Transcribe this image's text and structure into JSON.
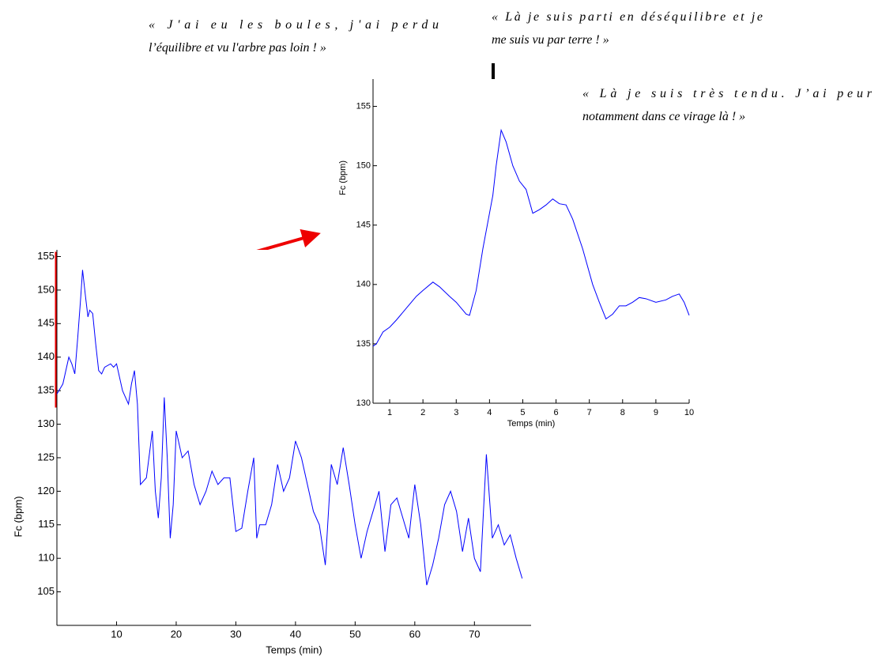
{
  "chart_data": [
    {
      "type": "line",
      "xlabel": "Temps (min)",
      "ylabel": "Fc (bpm)",
      "xlim": [
        0,
        79.5
      ],
      "ylim": [
        100,
        156
      ],
      "xticks": [
        10,
        20,
        30,
        40,
        50,
        60,
        70
      ],
      "yticks": [
        105,
        110,
        115,
        120,
        125,
        130,
        135,
        140,
        145,
        150,
        155
      ],
      "x": [
        0,
        1,
        2,
        2.5,
        3,
        3.5,
        4,
        4.3,
        4.8,
        5.2,
        5.5,
        6,
        6.5,
        7,
        7.5,
        8,
        9,
        9.5,
        10,
        11,
        12,
        12.5,
        13,
        13.5,
        14,
        15,
        16,
        16.5,
        17,
        17.5,
        18,
        18.5,
        19,
        19.5,
        20,
        21,
        22,
        23,
        24,
        25,
        26,
        27,
        28,
        29,
        30,
        31,
        32,
        33,
        33.5,
        34,
        35,
        36,
        37,
        38,
        39,
        40,
        41,
        42,
        43,
        44,
        45,
        46,
        47,
        48,
        49,
        50,
        51,
        52,
        53,
        54,
        55,
        56,
        57,
        58,
        59,
        60,
        61,
        62,
        63,
        64,
        65,
        66,
        67,
        68,
        69,
        70,
        71,
        72,
        73,
        74,
        75,
        76,
        77,
        78
      ],
      "series": [
        {
          "color": "#0000ff",
          "values": [
            134.5,
            136,
            140,
            139,
            137.5,
            143,
            149,
            153,
            149,
            146,
            147,
            146.5,
            142,
            138,
            137.5,
            138.5,
            139,
            138.5,
            139,
            135,
            133,
            136,
            138,
            133,
            121,
            122,
            129,
            120,
            116,
            122,
            134,
            125,
            113,
            118,
            129,
            125,
            126,
            121,
            118,
            120,
            123,
            121,
            122,
            122,
            114,
            114.5,
            120,
            125,
            113,
            115,
            115,
            118,
            124,
            120,
            122,
            127.5,
            125,
            121,
            117,
            115,
            109,
            124,
            121,
            126.5,
            121,
            115,
            110,
            114,
            117,
            120,
            111,
            118,
            119,
            116,
            113,
            121,
            115,
            106,
            109,
            113,
            118,
            120,
            117,
            111,
            116,
            110,
            108,
            125.5,
            113,
            115,
            112,
            113.5,
            110,
            107
          ]
        }
      ]
    },
    {
      "type": "line",
      "xlabel": "Temps (min)",
      "ylabel": "Fc (bpm)",
      "xlim": [
        0.5,
        10
      ],
      "ylim": [
        130,
        157.3
      ],
      "xticks": [
        1,
        2,
        3,
        4,
        5,
        6,
        7,
        8,
        9,
        10
      ],
      "yticks": [
        130,
        135,
        140,
        145,
        150,
        155
      ],
      "x": [
        0.5,
        0.6,
        0.8,
        1,
        1.2,
        1.5,
        1.8,
        2,
        2.3,
        2.5,
        2.8,
        3,
        3.3,
        3.4,
        3.6,
        3.8,
        4,
        4.1,
        4.2,
        4.35,
        4.5,
        4.7,
        4.9,
        5.1,
        5.3,
        5.5,
        5.7,
        5.9,
        6.1,
        6.3,
        6.5,
        6.8,
        7.1,
        7.3,
        7.5,
        7.7,
        7.9,
        8.1,
        8.3,
        8.5,
        8.7,
        9,
        9.3,
        9.5,
        9.7,
        9.85,
        10
      ],
      "series": [
        {
          "color": "#0000ff",
          "values": [
            134.8,
            135,
            136,
            136.4,
            137,
            138,
            139,
            139.5,
            140.2,
            139.8,
            139,
            138.5,
            137.5,
            137.4,
            139.5,
            143,
            146,
            147.5,
            150,
            153,
            152,
            150,
            148.7,
            148,
            146,
            146.3,
            146.7,
            147.2,
            146.8,
            146.7,
            145.5,
            143,
            140,
            138.5,
            137.1,
            137.5,
            138.2,
            138.2,
            138.5,
            138.9,
            138.8,
            138.5,
            138.7,
            139,
            139.2,
            138.5,
            137.4
          ]
        }
      ]
    }
  ],
  "annotations": [
    [
      "« J'ai eu les boules, j'ai perdu",
      "l’équilibre et vu l'arbre pas loin ! »"
    ],
    [
      "« Là je suis parti en déséquilibre et je",
      "me suis vu par terre ! »"
    ],
    [
      "« Là je suis très tendu. J’ai peur",
      "notamment dans ce virage là ! »"
    ]
  ]
}
